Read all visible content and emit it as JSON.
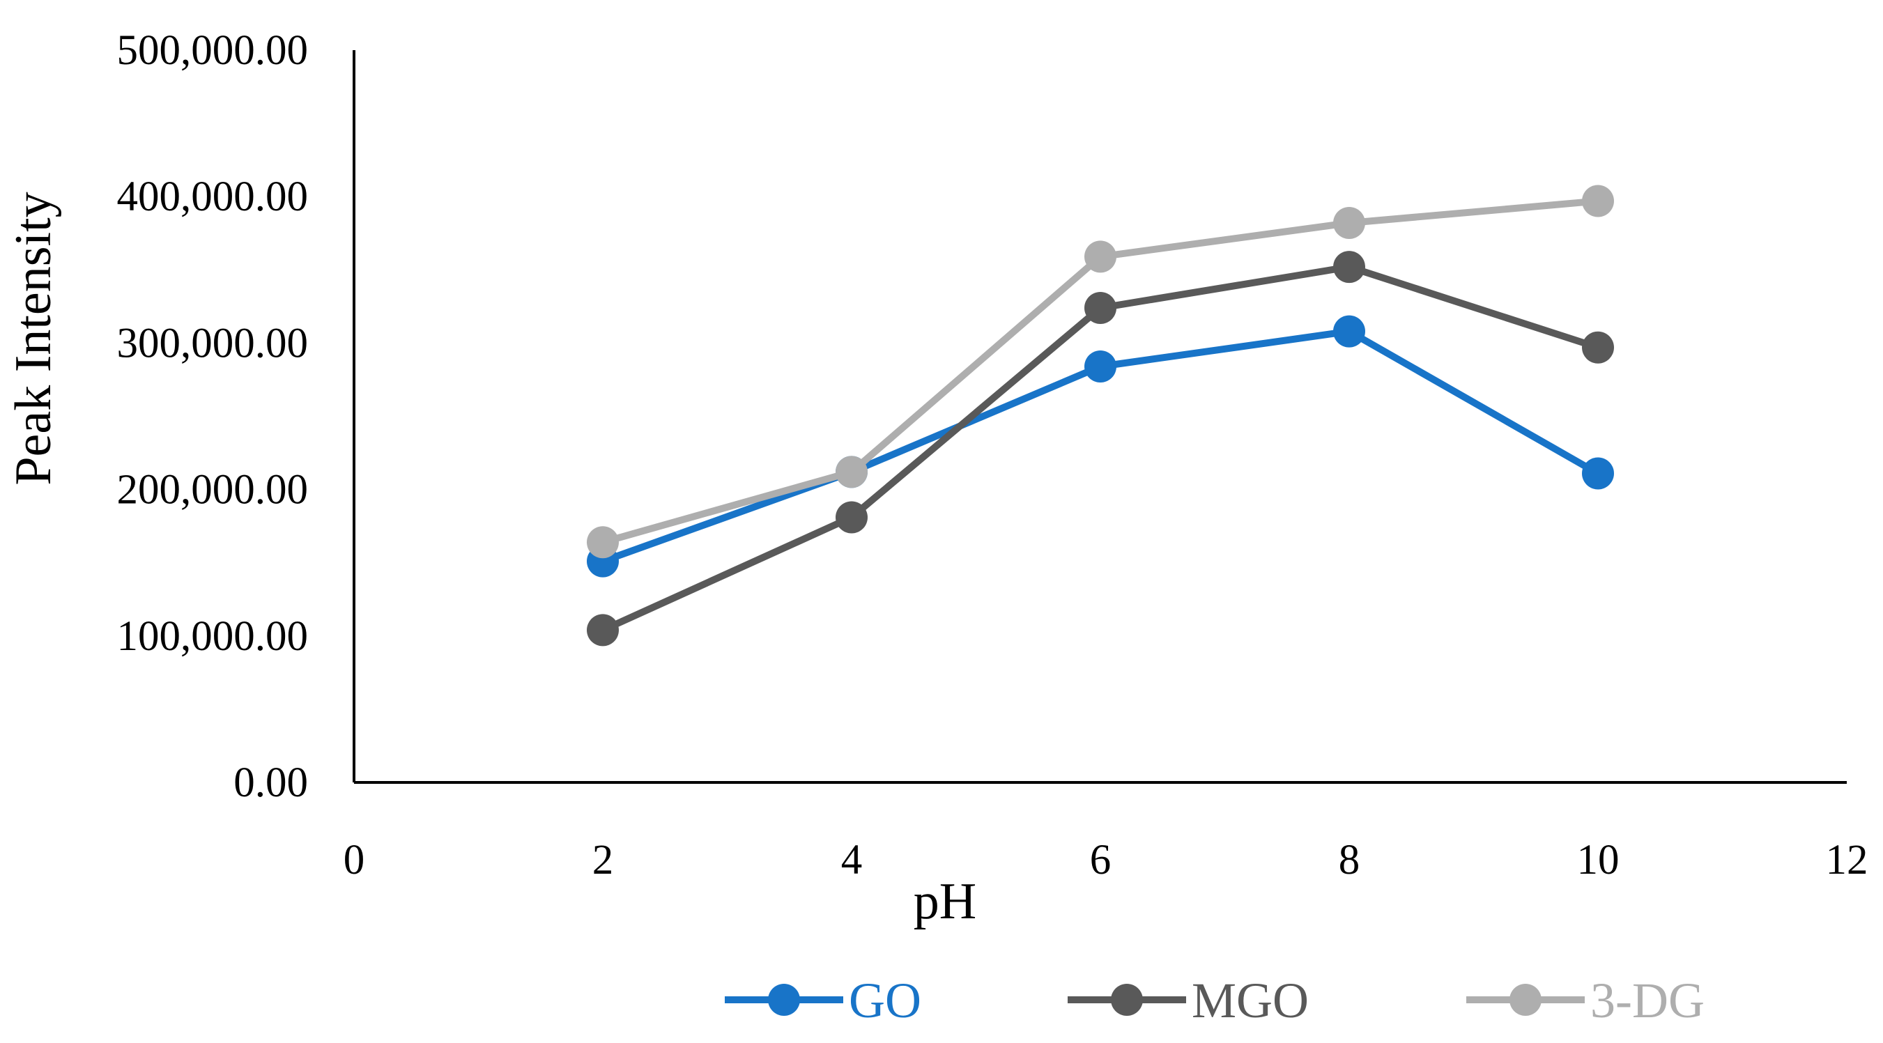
{
  "chart_data": {
    "type": "line",
    "title": "",
    "xlabel": "pH",
    "ylabel": "Peak Intensity",
    "xlim": [
      0,
      12
    ],
    "ylim": [
      0,
      500000
    ],
    "x_ticks": [
      0,
      2,
      4,
      6,
      8,
      10,
      12
    ],
    "x_tick_labels": [
      "0",
      "2",
      "4",
      "6",
      "8",
      "10",
      "12"
    ],
    "y_ticks": [
      0,
      100000,
      200000,
      300000,
      400000,
      500000
    ],
    "y_tick_labels": [
      "0.00",
      "100,000.00",
      "200,000.00",
      "300,000.00",
      "400,000.00",
      "500,000.00"
    ],
    "grid": false,
    "legend_position": "bottom",
    "x": [
      2,
      4,
      6,
      8,
      10
    ],
    "series": [
      {
        "name": "GO",
        "color": "#1874c8",
        "values": [
          151000,
          212000,
          284000,
          308000,
          211000
        ]
      },
      {
        "name": "MGO",
        "color": "#595959",
        "values": [
          104000,
          181000,
          324000,
          352000,
          297000
        ]
      },
      {
        "name": "3-DG",
        "color": "#aeaeae",
        "values": [
          164000,
          212000,
          359000,
          382000,
          397000
        ]
      }
    ]
  }
}
